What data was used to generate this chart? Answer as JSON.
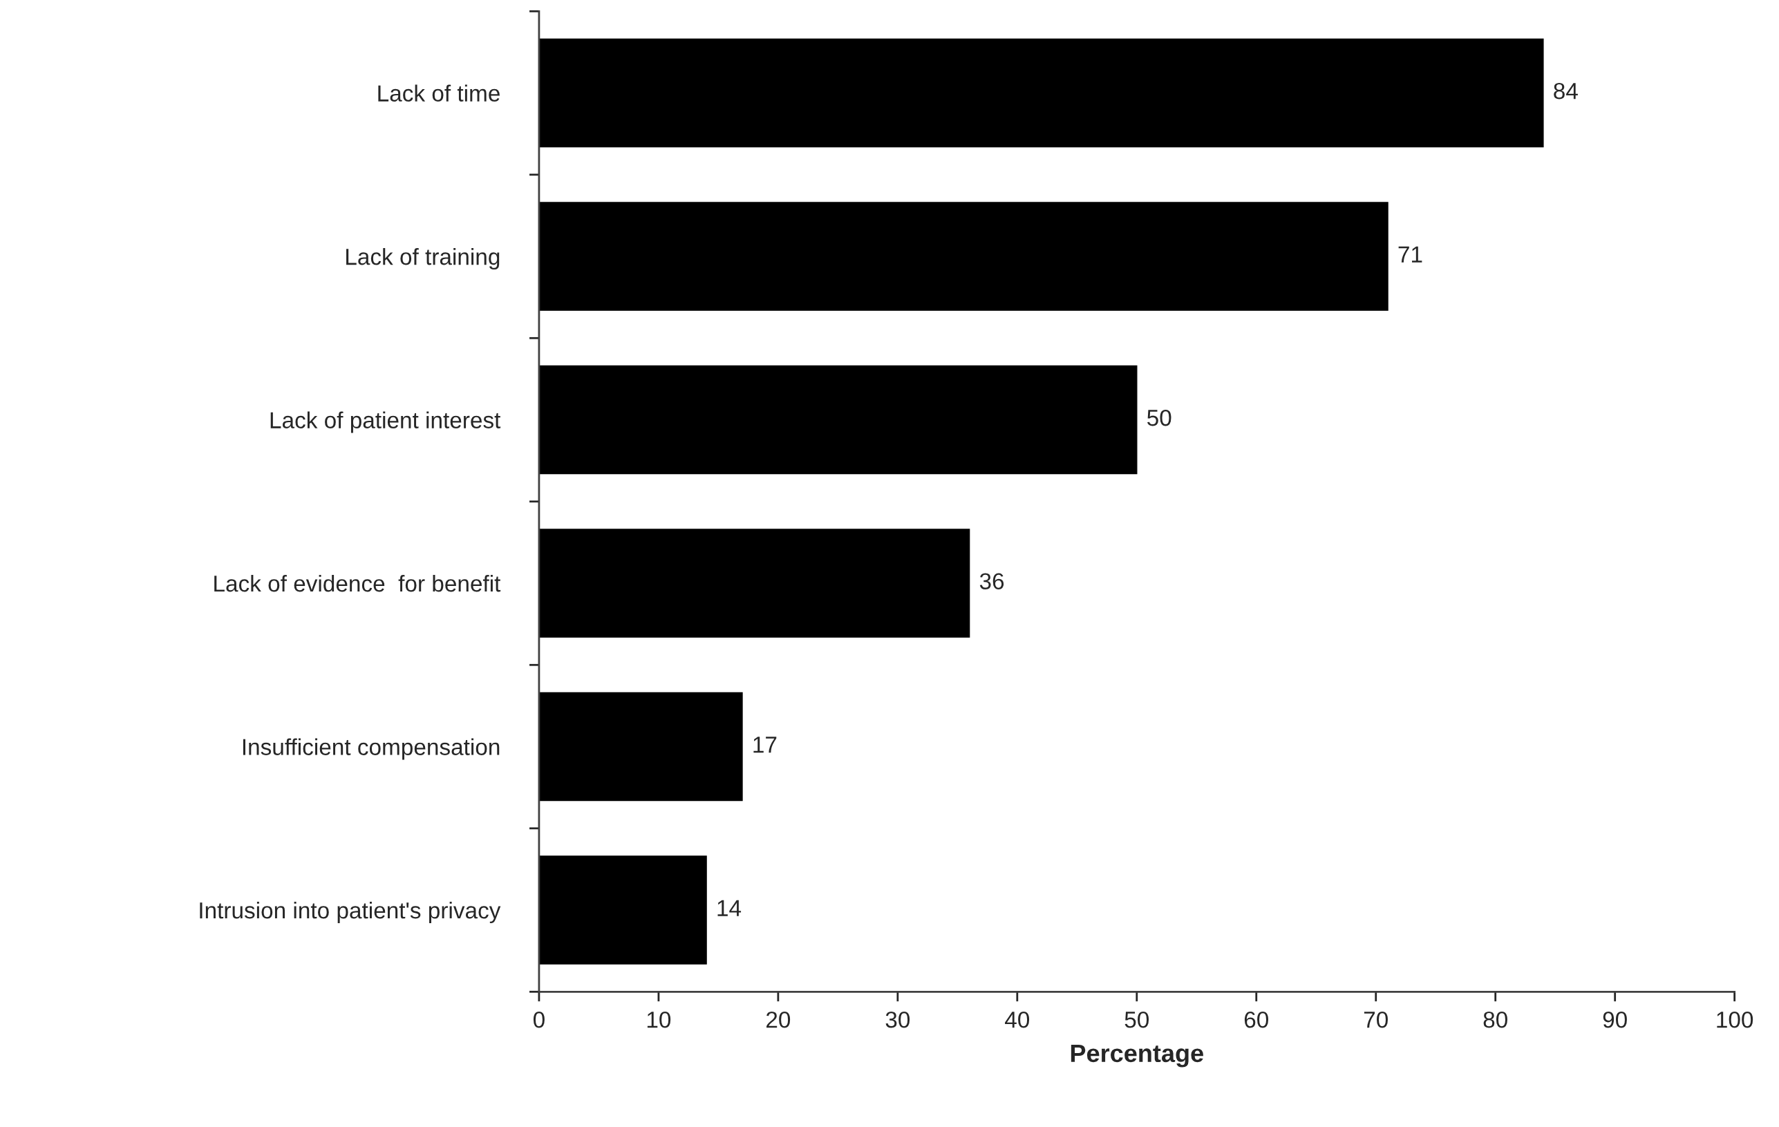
{
  "chart_data": {
    "type": "bar",
    "orientation": "horizontal",
    "xlabel": "Percentage",
    "categories": [
      "Lack of time",
      "Lack of training",
      "Lack of patient interest",
      "Lack of evidence  for benefit",
      "Insufficient compensation",
      "Intrusion into patient's privacy"
    ],
    "values": [
      84,
      71,
      50,
      36,
      17,
      14
    ],
    "color": "#000000",
    "xlim": [
      0,
      100
    ],
    "xticks": [
      0,
      10,
      20,
      30,
      40,
      50,
      60,
      70,
      80,
      90,
      100
    ],
    "data_labels": true,
    "grid": false,
    "legend": false
  }
}
